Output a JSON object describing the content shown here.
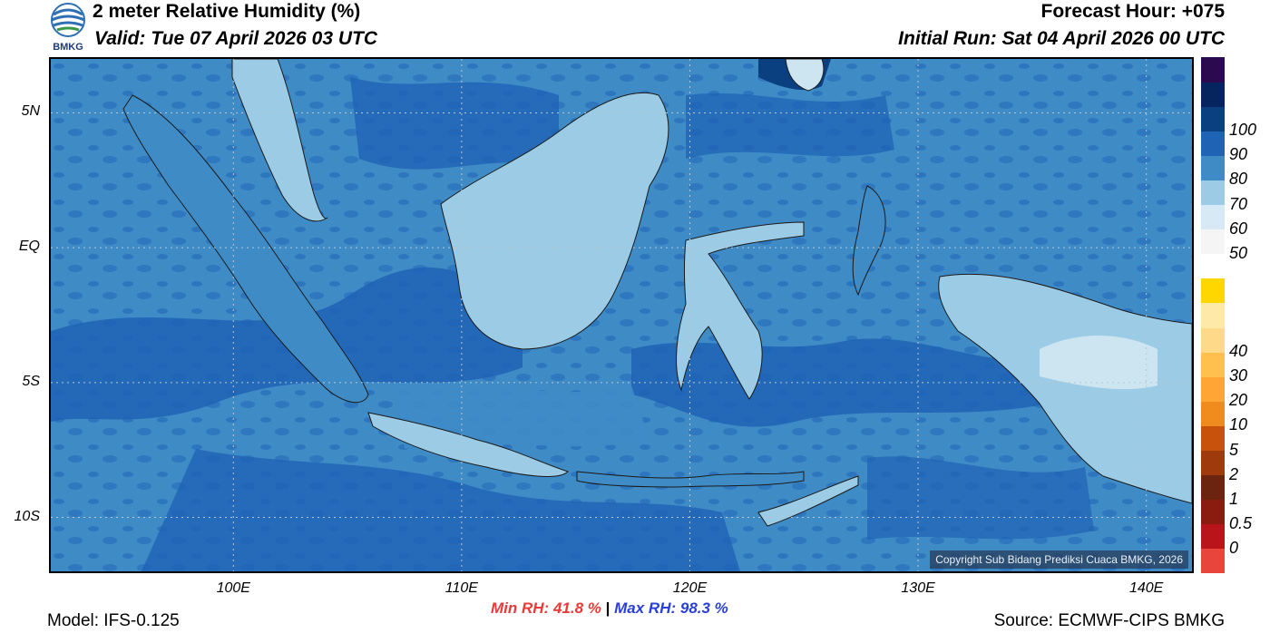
{
  "header": {
    "title": "2 meter Relative Humidity (%)",
    "valid": "Valid: Tue 07 April 2026 03 UTC",
    "forecast_hour": "Forecast Hour: +075",
    "initial_run": "Initial Run: Sat 04 April 2026 00 UTC",
    "logo_text": "BMKG"
  },
  "map": {
    "lon_range": [
      92,
      142
    ],
    "lat_range": [
      -12,
      7
    ],
    "lat_ticks": [
      {
        "lat": 5,
        "label": "5N"
      },
      {
        "lat": 0,
        "label": "EQ"
      },
      {
        "lat": -5,
        "label": "5S"
      },
      {
        "lat": -10,
        "label": "10S"
      }
    ],
    "lon_ticks": [
      {
        "lon": 100,
        "label": "100E"
      },
      {
        "lon": 110,
        "label": "110E"
      },
      {
        "lon": 120,
        "label": "120E"
      },
      {
        "lon": 130,
        "label": "130E"
      },
      {
        "lon": 140,
        "label": "140E"
      }
    ],
    "copyright": "Copyright Sub Bidang Prediksi Cuaca BMKG, 2026",
    "colors": {
      "sea": "#3f8bc6",
      "deep": "#1f63b5",
      "land_light": "#9ccbe6",
      "land_lighter": "#cde4f1",
      "coast": "#1a1a1a",
      "grid": "#b7c6d4"
    }
  },
  "colorbar": {
    "boxes": [
      "#e8453c",
      "#b81419",
      "#8a1b0f",
      "#6b2410",
      "#9e3a0c",
      "#c8520c",
      "#f08c1e",
      "#ffa535",
      "#ffc04d",
      "#ffd98a",
      "#ffe9a8",
      "#ffd700",
      "#ffffff",
      "#f5f5f5",
      "#d6e9f5",
      "#9ccbe6",
      "#3f8bc6",
      "#1f63b5",
      "#0a3f80",
      "#06255e",
      "#2b0a4f"
    ],
    "labels": [
      "0",
      "0.5",
      "1",
      "2",
      "5",
      "10",
      "20",
      "30",
      "40",
      "50",
      "60",
      "70",
      "80",
      "90",
      "100"
    ]
  },
  "footer": {
    "model": "Model: IFS-0.125",
    "min_label": "Min RH:",
    "min_value": "41.8 %",
    "separator": "|",
    "max_label": "Max RH:",
    "max_value": "98.3 %",
    "source": "Source: ECMWF-CIPS BMKG",
    "min_color": "#e83a3a",
    "max_color": "#2a3fd6"
  }
}
